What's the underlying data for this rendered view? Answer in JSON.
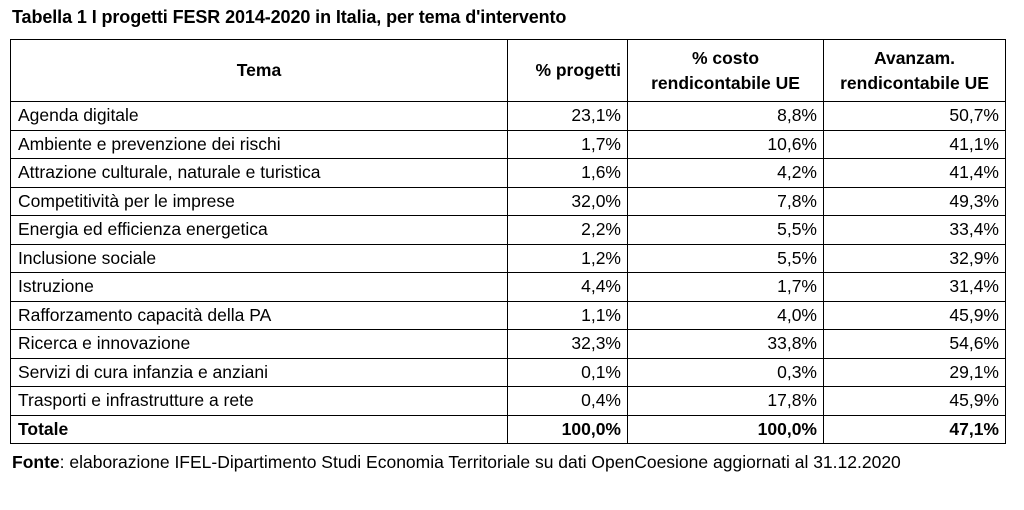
{
  "caption": "Tabella 1 I progetti FESR 2014-2020 in Italia, per tema d'intervento",
  "table": {
    "headers": {
      "tema": "Tema",
      "progetti": "% progetti",
      "costo_line1": "% costo",
      "costo_line2": "rendicontabile UE",
      "avanzamento_line1": "Avanzam.",
      "avanzamento_line2": "rendicontabile UE"
    },
    "rows": [
      {
        "tema": "Agenda digitale",
        "progetti": "23,1%",
        "costo": "8,8%",
        "avanzamento": "50,7%"
      },
      {
        "tema": "Ambiente e prevenzione dei rischi",
        "progetti": "1,7%",
        "costo": "10,6%",
        "avanzamento": "41,1%"
      },
      {
        "tema": "Attrazione culturale, naturale e turistica",
        "progetti": "1,6%",
        "costo": "4,2%",
        "avanzamento": "41,4%"
      },
      {
        "tema": "Competitività per le imprese",
        "progetti": "32,0%",
        "costo": "7,8%",
        "avanzamento": "49,3%"
      },
      {
        "tema": "Energia ed efficienza energetica",
        "progetti": "2,2%",
        "costo": "5,5%",
        "avanzamento": "33,4%"
      },
      {
        "tema": "Inclusione sociale",
        "progetti": "1,2%",
        "costo": "5,5%",
        "avanzamento": "32,9%"
      },
      {
        "tema": "Istruzione",
        "progetti": "4,4%",
        "costo": "1,7%",
        "avanzamento": "31,4%"
      },
      {
        "tema": "Rafforzamento capacità della PA",
        "progetti": "1,1%",
        "costo": "4,0%",
        "avanzamento": "45,9%"
      },
      {
        "tema": "Ricerca e innovazione",
        "progetti": "32,3%",
        "costo": "33,8%",
        "avanzamento": "54,6%"
      },
      {
        "tema": "Servizi di cura infanzia e anziani",
        "progetti": "0,1%",
        "costo": "0,3%",
        "avanzamento": "29,1%"
      },
      {
        "tema": "Trasporti e infrastrutture a rete",
        "progetti": "0,4%",
        "costo": "17,8%",
        "avanzamento": "45,9%"
      }
    ],
    "total": {
      "tema": "Totale",
      "progetti": "100,0%",
      "costo": "100,0%",
      "avanzamento": "47,1%"
    }
  },
  "source": {
    "label": "Fonte",
    "text": ": elaborazione IFEL-Dipartimento Studi Economia Territoriale su dati OpenCoesione aggiornati al 31.12.2020"
  }
}
